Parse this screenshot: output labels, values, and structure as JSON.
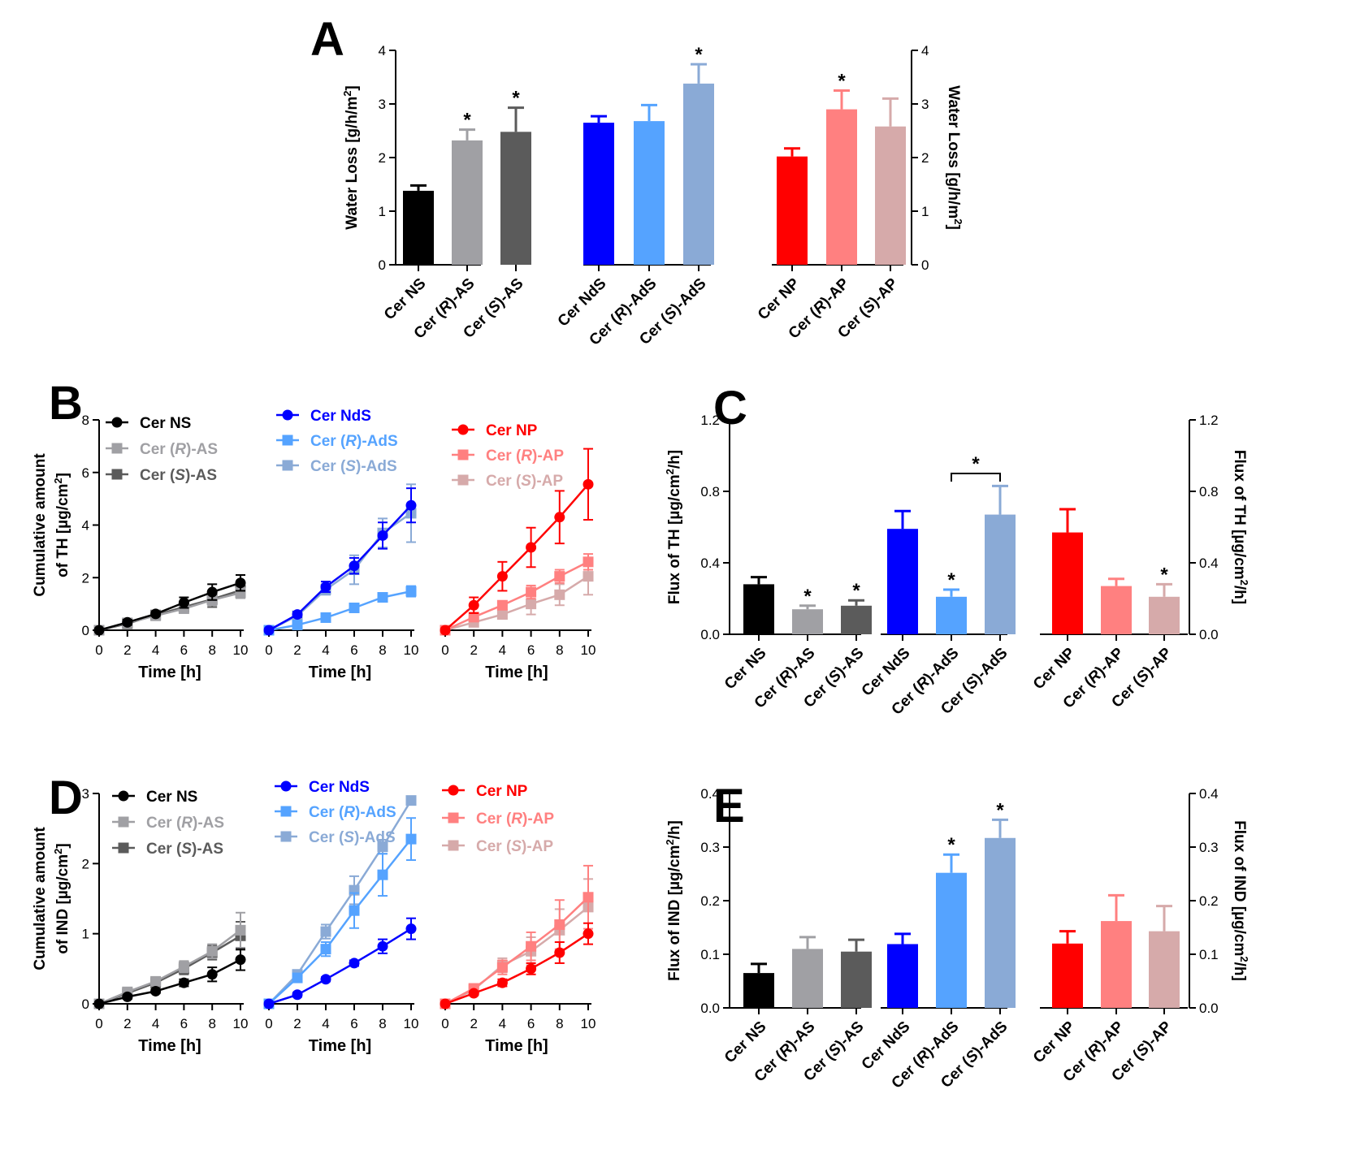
{
  "panel_labels": {
    "A": "A",
    "B": "B",
    "C": "C",
    "D": "D",
    "E": "E"
  },
  "colors": {
    "NS": "#000000",
    "R-AS": "#a0a0a4",
    "S-AS": "#5b5b5b",
    "NdS": "#0000ff",
    "R-AdS": "#55a3ff",
    "S-AdS": "#8aaad6",
    "NP": "#ff0000",
    "R-AP": "#ff8080",
    "S-AP": "#d6aaaa"
  },
  "chart_data": [
    {
      "id": "A",
      "type": "bar",
      "title": "",
      "ylabel": "Water Loss [g/h/m²]",
      "ylabel_right": "Water Loss [g/h/m²]",
      "ylim": [
        0,
        4
      ],
      "yticks": [
        "0",
        "1",
        "2",
        "3",
        "4"
      ],
      "groups": [
        {
          "bars": [
            {
              "cat": "Cer NS",
              "value": 1.38,
              "err": 0.1,
              "color_key": "NS",
              "star": ""
            },
            {
              "cat": "Cer (R)-AS",
              "value": 2.32,
              "err": 0.2,
              "color_key": "R-AS",
              "star": "*"
            },
            {
              "cat": "Cer (S)-AS",
              "value": 2.48,
              "err": 0.45,
              "color_key": "S-AS",
              "star": "*"
            }
          ]
        },
        {
          "bars": [
            {
              "cat": "Cer NdS",
              "value": 2.65,
              "err": 0.12,
              "color_key": "NdS",
              "star": ""
            },
            {
              "cat": "Cer (R)-AdS",
              "value": 2.68,
              "err": 0.3,
              "color_key": "R-AdS",
              "star": ""
            },
            {
              "cat": "Cer (S)-AdS",
              "value": 3.38,
              "err": 0.36,
              "color_key": "S-AdS",
              "star": "*"
            }
          ]
        },
        {
          "bars": [
            {
              "cat": "Cer NP",
              "value": 2.02,
              "err": 0.15,
              "color_key": "NP",
              "star": ""
            },
            {
              "cat": "Cer (R)-AP",
              "value": 2.9,
              "err": 0.35,
              "color_key": "R-AP",
              "star": "*"
            },
            {
              "cat": "Cer (S)-AP",
              "value": 2.58,
              "err": 0.52,
              "color_key": "S-AP",
              "star": ""
            }
          ]
        }
      ],
      "brackets": []
    },
    {
      "id": "C",
      "type": "bar",
      "title": "",
      "ylabel": "Flux of TH [µg/cm²/h]",
      "ylabel_right": "Flux of TH [µg/cm²/h]",
      "ylim": [
        0,
        1.2
      ],
      "yticks": [
        "0.0",
        "0.4",
        "0.8",
        "1.2"
      ],
      "groups": [
        {
          "bars": [
            {
              "cat": "Cer NS",
              "value": 0.28,
              "err": 0.04,
              "color_key": "NS",
              "star": ""
            },
            {
              "cat": "Cer (R)-AS",
              "value": 0.14,
              "err": 0.02,
              "color_key": "R-AS",
              "star": "*"
            },
            {
              "cat": "Cer (S)-AS",
              "value": 0.16,
              "err": 0.03,
              "color_key": "S-AS",
              "star": "*"
            }
          ]
        },
        {
          "bars": [
            {
              "cat": "Cer NdS",
              "value": 0.59,
              "err": 0.1,
              "color_key": "NdS",
              "star": ""
            },
            {
              "cat": "Cer (R)-AdS",
              "value": 0.21,
              "err": 0.04,
              "color_key": "R-AdS",
              "star": "*"
            },
            {
              "cat": "Cer (S)-AdS",
              "value": 0.67,
              "err": 0.16,
              "color_key": "S-AdS",
              "star": ""
            }
          ]
        },
        {
          "bars": [
            {
              "cat": "Cer NP",
              "value": 0.57,
              "err": 0.13,
              "color_key": "NP",
              "star": ""
            },
            {
              "cat": "Cer (R)-AP",
              "value": 0.27,
              "err": 0.04,
              "color_key": "R-AP",
              "star": ""
            },
            {
              "cat": "Cer (S)-AP",
              "value": 0.21,
              "err": 0.07,
              "color_key": "S-AP",
              "star": "*"
            }
          ]
        }
      ],
      "brackets": [
        {
          "group": 1,
          "from": 1,
          "to": 2,
          "value": 0.9,
          "label": "*"
        }
      ]
    },
    {
      "id": "E",
      "type": "bar",
      "title": "",
      "ylabel": "Flux of IND [µg/cm²/h]",
      "ylabel_right": "Flux of IND [µg/cm²/h]",
      "ylim": [
        0,
        0.4
      ],
      "yticks": [
        "0.0",
        "0.1",
        "0.2",
        "0.3",
        "0.4"
      ],
      "groups": [
        {
          "bars": [
            {
              "cat": "Cer NS",
              "value": 0.065,
              "err": 0.017,
              "color_key": "NS",
              "star": ""
            },
            {
              "cat": "Cer (R)-AS",
              "value": 0.11,
              "err": 0.022,
              "color_key": "R-AS",
              "star": ""
            },
            {
              "cat": "Cer (S)-AS",
              "value": 0.105,
              "err": 0.022,
              "color_key": "S-AS",
              "star": ""
            }
          ]
        },
        {
          "bars": [
            {
              "cat": "Cer NdS",
              "value": 0.119,
              "err": 0.019,
              "color_key": "NdS",
              "star": ""
            },
            {
              "cat": "Cer (R)-AdS",
              "value": 0.252,
              "err": 0.034,
              "color_key": "R-AdS",
              "star": "*"
            },
            {
              "cat": "Cer (S)-AdS",
              "value": 0.317,
              "err": 0.034,
              "color_key": "S-AdS",
              "star": "*"
            }
          ]
        },
        {
          "bars": [
            {
              "cat": "Cer NP",
              "value": 0.12,
              "err": 0.023,
              "color_key": "NP",
              "star": ""
            },
            {
              "cat": "Cer (R)-AP",
              "value": 0.162,
              "err": 0.048,
              "color_key": "R-AP",
              "star": ""
            },
            {
              "cat": "Cer (S)-AP",
              "value": 0.143,
              "err": 0.047,
              "color_key": "S-AP",
              "star": ""
            }
          ]
        }
      ],
      "brackets": []
    },
    {
      "id": "B",
      "type": "line",
      "ylabel": [
        "Cumulative amount",
        "of TH [µg/cm²]"
      ],
      "xlabel": "Time [h]",
      "ylim": [
        0,
        8
      ],
      "yticks": [
        "0",
        "2",
        "4",
        "6",
        "8"
      ],
      "xlim": [
        0,
        10
      ],
      "xticks": [
        "0",
        "2",
        "4",
        "6",
        "8",
        "10"
      ],
      "x": [
        0,
        2,
        4,
        6,
        8,
        10
      ],
      "subplots": [
        {
          "series": [
            {
              "name": "Cer NS",
              "color_key": "NS",
              "marker": "circle",
              "values": [
                0,
                0.3,
                0.62,
                1.05,
                1.45,
                1.8
              ],
              "err": [
                0,
                0.1,
                0.08,
                0.2,
                0.3,
                0.3
              ]
            },
            {
              "name": "Cer (R)-AS",
              "color_key": "R-AS",
              "marker": "square",
              "values": [
                0,
                0.28,
                0.55,
                0.82,
                1.15,
                1.42
              ],
              "err": [
                0,
                0.1,
                0.1,
                0.15,
                0.2,
                0.2
              ]
            },
            {
              "name": "Cer (S)-AS",
              "color_key": "S-AS",
              "marker": "square",
              "values": [
                0,
                0.25,
                0.58,
                0.88,
                1.18,
                1.52
              ],
              "err": [
                0,
                0.1,
                0.1,
                0.15,
                0.3,
                0.3
              ]
            }
          ]
        },
        {
          "series": [
            {
              "name": "Cer NdS",
              "color_key": "NdS",
              "marker": "circle",
              "values": [
                0,
                0.6,
                1.65,
                2.45,
                3.6,
                4.75
              ],
              "err": [
                0,
                0.1,
                0.2,
                0.3,
                0.5,
                0.65
              ]
            },
            {
              "name": "Cer (R)-AdS",
              "color_key": "R-AdS",
              "marker": "square",
              "values": [
                0,
                0.2,
                0.48,
                0.85,
                1.25,
                1.48
              ],
              "err": [
                0,
                0.05,
                0.1,
                0.1,
                0.15,
                0.2
              ]
            },
            {
              "name": "Cer (S)-AdS",
              "color_key": "S-AdS",
              "marker": "square",
              "values": [
                0,
                0.55,
                1.55,
                2.3,
                3.7,
                4.45
              ],
              "err": [
                0,
                0.15,
                0.2,
                0.55,
                0.55,
                1.1
              ]
            }
          ]
        },
        {
          "series": [
            {
              "name": "Cer NP",
              "color_key": "NP",
              "marker": "circle",
              "values": [
                0,
                0.95,
                2.05,
                3.15,
                4.3,
                5.55
              ],
              "err": [
                0,
                0.3,
                0.55,
                0.75,
                1.0,
                1.35
              ]
            },
            {
              "name": "Cer (R)-AP",
              "color_key": "R-AP",
              "marker": "square",
              "values": [
                0,
                0.5,
                0.95,
                1.45,
                2.05,
                2.6
              ],
              "err": [
                0,
                0.1,
                0.15,
                0.25,
                0.25,
                0.3
              ]
            },
            {
              "name": "Cer (S)-AP",
              "color_key": "S-AP",
              "marker": "square",
              "values": [
                0,
                0.3,
                0.6,
                1.0,
                1.35,
                2.05
              ],
              "err": [
                0,
                0.1,
                0.15,
                0.4,
                0.4,
                0.7
              ]
            }
          ]
        }
      ]
    },
    {
      "id": "D",
      "type": "line",
      "ylabel": [
        "Cumulative amount",
        "of IND [µg/cm²]"
      ],
      "xlabel": "Time [h]",
      "ylim": [
        0,
        3
      ],
      "yticks": [
        "0",
        "1",
        "2",
        "3"
      ],
      "xlim": [
        0,
        10
      ],
      "xticks": [
        "0",
        "2",
        "4",
        "6",
        "8",
        "10"
      ],
      "x": [
        0,
        2,
        4,
        6,
        8,
        10
      ],
      "subplots": [
        {
          "series": [
            {
              "name": "Cer NS",
              "color_key": "NS",
              "marker": "circle",
              "values": [
                0,
                0.1,
                0.18,
                0.3,
                0.42,
                0.63
              ],
              "err": [
                0,
                0.03,
                0.03,
                0.05,
                0.1,
                0.15
              ]
            },
            {
              "name": "Cer (R)-AS",
              "color_key": "R-AS",
              "marker": "square",
              "values": [
                0,
                0.17,
                0.32,
                0.53,
                0.75,
                1.05
              ],
              "err": [
                0,
                0.03,
                0.05,
                0.08,
                0.1,
                0.25
              ]
            },
            {
              "name": "Cer (S)-AS",
              "color_key": "S-AS",
              "marker": "square",
              "values": [
                0,
                0.15,
                0.3,
                0.5,
                0.73,
                0.97
              ],
              "err": [
                0,
                0.03,
                0.05,
                0.08,
                0.1,
                0.2
              ]
            }
          ]
        },
        {
          "series": [
            {
              "name": "Cer NdS",
              "color_key": "NdS",
              "marker": "circle",
              "values": [
                0,
                0.13,
                0.35,
                0.58,
                0.82,
                1.07
              ],
              "err": [
                0,
                0.03,
                0.03,
                0.04,
                0.1,
                0.15
              ]
            },
            {
              "name": "Cer (R)-AdS",
              "color_key": "R-AdS",
              "marker": "square",
              "values": [
                0,
                0.37,
                0.78,
                1.33,
                1.84,
                2.35
              ],
              "err": [
                0,
                0.05,
                0.1,
                0.25,
                0.3,
                0.3
              ]
            },
            {
              "name": "Cer (S)-AdS",
              "color_key": "S-AdS",
              "marker": "square",
              "values": [
                0,
                0.42,
                1.03,
                1.62,
                2.24,
                2.9
              ],
              "err": [
                0,
                0.05,
                0.1,
                0.2,
                0.1,
                0.05
              ]
            }
          ]
        },
        {
          "series": [
            {
              "name": "Cer NP",
              "color_key": "NP",
              "marker": "circle",
              "values": [
                0,
                0.15,
                0.3,
                0.5,
                0.73,
                1.0
              ],
              "err": [
                0,
                0.03,
                0.05,
                0.08,
                0.15,
                0.15
              ]
            },
            {
              "name": "Cer (R)-AP",
              "color_key": "R-AP",
              "marker": "square",
              "values": [
                0,
                0.22,
                0.52,
                0.82,
                1.13,
                1.52
              ],
              "err": [
                0,
                0.05,
                0.1,
                0.2,
                0.35,
                0.45
              ]
            },
            {
              "name": "Cer (S)-AP",
              "color_key": "S-AP",
              "marker": "square",
              "values": [
                0,
                0.2,
                0.55,
                0.75,
                1.05,
                1.38
              ],
              "err": [
                0,
                0.05,
                0.1,
                0.2,
                0.3,
                0.4
              ]
            }
          ]
        }
      ]
    }
  ]
}
